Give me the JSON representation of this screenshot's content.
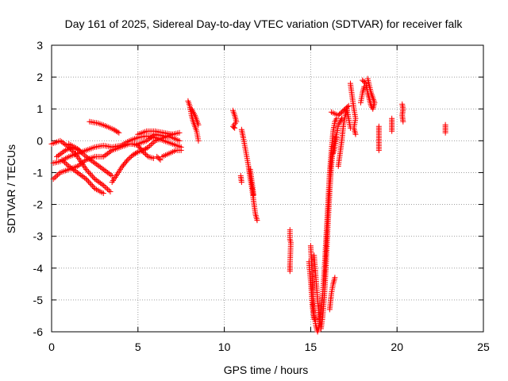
{
  "chart_data": {
    "type": "scatter",
    "title": "Day 161 of 2025, Sidereal Day-to-day VTEC variation (SDTVAR) for receiver falk",
    "xlabel": "GPS time / hours",
    "ylabel": "SDTVAR / TECUs",
    "xlim": [
      0,
      25
    ],
    "ylim": [
      -6,
      3
    ],
    "xticks": [
      0,
      5,
      10,
      15,
      20,
      25
    ],
    "yticks": [
      -6,
      -5,
      -4,
      -3,
      -2,
      -1,
      0,
      1,
      2,
      3
    ],
    "xtick_labels": [
      "0",
      "5",
      "10",
      "15",
      "20",
      "25"
    ],
    "ytick_labels": [
      "-6",
      "-5",
      "-4",
      "-3",
      "-2",
      "-1",
      "0",
      "1",
      "2",
      "3"
    ],
    "grid": true,
    "marker": "+",
    "color": "#ff0000",
    "series": [
      {
        "name": "SDTVAR",
        "segments": [
          [
            [
              0.1,
              -0.7
            ],
            [
              0.5,
              -0.65
            ],
            [
              1.0,
              -0.5
            ],
            [
              1.5,
              -0.4
            ],
            [
              2.0,
              -0.3
            ],
            [
              2.5,
              -0.2
            ],
            [
              3.0,
              -0.15
            ],
            [
              3.5,
              -0.2
            ],
            [
              4.0,
              -0.15
            ],
            [
              4.5,
              0.0
            ],
            [
              5.0,
              0.1
            ],
            [
              5.5,
              0.15
            ],
            [
              6.0,
              0.1
            ],
            [
              6.5,
              0.0
            ],
            [
              7.0,
              -0.1
            ],
            [
              7.5,
              -0.2
            ]
          ],
          [
            [
              0.1,
              -1.2
            ],
            [
              0.5,
              -1.0
            ],
            [
              1.0,
              -0.9
            ],
            [
              1.5,
              -0.8
            ],
            [
              2.0,
              -0.6
            ],
            [
              2.5,
              -0.5
            ],
            [
              3.0,
              -0.5
            ],
            [
              3.5,
              -0.3
            ],
            [
              4.0,
              -0.2
            ],
            [
              4.5,
              -0.1
            ],
            [
              5.0,
              -0.1
            ],
            [
              5.5,
              0.0
            ],
            [
              6.0,
              0.2
            ],
            [
              6.5,
              0.15
            ],
            [
              7.0,
              0.1
            ],
            [
              7.4,
              0.0
            ]
          ],
          [
            [
              0.0,
              -0.1
            ],
            [
              0.5,
              0.0
            ],
            [
              1.0,
              -0.2
            ],
            [
              1.5,
              -0.5
            ],
            [
              2.0,
              -0.9
            ],
            [
              2.5,
              -1.2
            ],
            [
              3.0,
              -1.4
            ],
            [
              3.4,
              -1.6
            ]
          ],
          [
            [
              0.6,
              -0.6
            ],
            [
              1.0,
              -0.8
            ],
            [
              1.5,
              -1.0
            ],
            [
              2.0,
              -1.2
            ],
            [
              2.5,
              -1.5
            ],
            [
              3.0,
              -1.65
            ]
          ],
          [
            [
              1.0,
              -0.1
            ],
            [
              1.5,
              -0.25
            ],
            [
              2.0,
              -0.5
            ],
            [
              2.5,
              -0.7
            ],
            [
              3.0,
              -0.9
            ],
            [
              3.5,
              -1.1
            ]
          ],
          [
            [
              0.3,
              -0.5
            ],
            [
              0.8,
              -0.3
            ],
            [
              1.2,
              -0.2
            ],
            [
              1.6,
              -0.3
            ]
          ],
          [
            [
              2.2,
              0.6
            ],
            [
              2.7,
              0.55
            ],
            [
              3.2,
              0.45
            ],
            [
              3.6,
              0.35
            ],
            [
              3.9,
              0.25
            ]
          ],
          [
            [
              3.5,
              -1.3
            ],
            [
              3.8,
              -1.05
            ],
            [
              4.1,
              -0.8
            ],
            [
              4.4,
              -0.6
            ],
            [
              4.7,
              -0.45
            ],
            [
              5.0,
              -0.35
            ],
            [
              5.3,
              -0.3
            ],
            [
              5.6,
              -0.2
            ],
            [
              6.0,
              0.0
            ],
            [
              6.5,
              0.1
            ],
            [
              7.0,
              0.2
            ],
            [
              7.4,
              0.25
            ]
          ],
          [
            [
              4.7,
              -0.1
            ],
            [
              5.0,
              -0.15
            ],
            [
              5.3,
              -0.35
            ],
            [
              5.6,
              -0.5
            ],
            [
              5.9,
              -0.55
            ]
          ],
          [
            [
              5.0,
              0.2
            ],
            [
              5.5,
              0.3
            ],
            [
              6.0,
              0.3
            ],
            [
              6.5,
              0.25
            ],
            [
              7.0,
              0.2
            ]
          ],
          [
            [
              6.4,
              -0.5
            ],
            [
              6.8,
              -0.4
            ],
            [
              7.2,
              -0.3
            ],
            [
              7.5,
              -0.3
            ]
          ],
          [
            [
              6.1,
              -0.5
            ],
            [
              6.3,
              -0.6
            ]
          ],
          [
            [
              7.9,
              1.25
            ],
            [
              8.0,
              1.1
            ],
            [
              8.1,
              0.8
            ],
            [
              8.2,
              0.6
            ],
            [
              8.4,
              0.3
            ],
            [
              8.5,
              0.0
            ]
          ],
          [
            [
              8.1,
              1.0
            ],
            [
              8.3,
              0.8
            ],
            [
              8.5,
              0.5
            ]
          ],
          [
            [
              10.5,
              0.95
            ],
            [
              10.6,
              0.8
            ],
            [
              10.7,
              0.6
            ],
            [
              10.5,
              0.45
            ],
            [
              10.6,
              0.4
            ]
          ],
          [
            [
              11.0,
              0.35
            ],
            [
              11.1,
              0.1
            ],
            [
              11.2,
              -0.2
            ],
            [
              11.3,
              -0.5
            ],
            [
              11.4,
              -0.8
            ],
            [
              11.5,
              -1.2
            ],
            [
              11.6,
              -1.5
            ],
            [
              11.7,
              -1.9
            ],
            [
              11.8,
              -2.3
            ],
            [
              11.9,
              -2.5
            ]
          ],
          [
            [
              11.5,
              -0.9
            ],
            [
              11.6,
              -1.3
            ],
            [
              11.7,
              -1.7
            ]
          ],
          [
            [
              10.95,
              -1.1
            ],
            [
              11.0,
              -1.3
            ]
          ],
          [
            [
              13.8,
              -2.8
            ],
            [
              13.8,
              -3.1
            ],
            [
              13.85,
              -3.2
            ],
            [
              13.8,
              -3.9
            ],
            [
              13.8,
              -4.1
            ]
          ],
          [
            [
              15.0,
              -3.3
            ],
            [
              15.05,
              -3.8
            ],
            [
              15.1,
              -4.5
            ],
            [
              15.15,
              -5.0
            ],
            [
              15.2,
              -5.5
            ],
            [
              15.3,
              -5.8
            ],
            [
              15.4,
              -6.0
            ],
            [
              15.5,
              -5.8
            ],
            [
              15.6,
              -5.3
            ],
            [
              15.7,
              -4.8
            ],
            [
              15.8,
              -4.0
            ],
            [
              15.9,
              -3.0
            ],
            [
              16.0,
              -2.0
            ],
            [
              16.1,
              -1.0
            ],
            [
              16.2,
              -0.3
            ],
            [
              16.3,
              0.3
            ],
            [
              16.4,
              0.6
            ],
            [
              16.5,
              0.7
            ]
          ],
          [
            [
              15.2,
              -3.6
            ],
            [
              15.3,
              -4.3
            ],
            [
              15.4,
              -5.0
            ],
            [
              15.5,
              -5.5
            ],
            [
              15.6,
              -5.9
            ],
            [
              15.7,
              -5.5
            ],
            [
              15.8,
              -4.8
            ],
            [
              15.9,
              -3.8
            ],
            [
              16.0,
              -2.6
            ],
            [
              16.1,
              -1.6
            ],
            [
              16.2,
              -0.8
            ],
            [
              16.3,
              -0.2
            ],
            [
              16.5,
              0.2
            ],
            [
              16.6,
              0.5
            ],
            [
              16.8,
              0.7
            ]
          ],
          [
            [
              14.9,
              -3.8
            ],
            [
              15.0,
              -4.4
            ],
            [
              15.1,
              -5.2
            ],
            [
              15.2,
              -5.6
            ],
            [
              15.3,
              -5.6
            ]
          ],
          [
            [
              16.1,
              -5.3
            ],
            [
              16.2,
              -4.8
            ],
            [
              16.3,
              -4.5
            ],
            [
              16.4,
              -4.3
            ]
          ],
          [
            [
              16.2,
              0.9
            ],
            [
              16.4,
              0.85
            ],
            [
              16.6,
              0.8
            ],
            [
              16.8,
              0.9
            ],
            [
              17.0,
              1.0
            ],
            [
              17.2,
              1.1
            ]
          ],
          [
            [
              16.6,
              -0.8
            ],
            [
              16.7,
              -0.4
            ],
            [
              16.8,
              0.0
            ],
            [
              16.9,
              0.5
            ],
            [
              17.0,
              0.8
            ],
            [
              17.1,
              1.0
            ],
            [
              17.2,
              0.7
            ],
            [
              17.3,
              0.4
            ]
          ],
          [
            [
              17.3,
              1.8
            ],
            [
              17.4,
              1.4
            ],
            [
              17.5,
              1.0
            ],
            [
              17.6,
              0.7
            ],
            [
              17.5,
              0.4
            ],
            [
              17.6,
              0.2
            ]
          ],
          [
            [
              16.3,
              -0.4
            ],
            [
              16.4,
              -0.2
            ],
            [
              16.5,
              0.1
            ]
          ],
          [
            [
              18.0,
              1.9
            ],
            [
              18.2,
              1.8
            ],
            [
              18.3,
              1.5
            ],
            [
              18.4,
              1.3
            ],
            [
              18.5,
              1.1
            ],
            [
              18.6,
              1.0
            ],
            [
              18.7,
              1.2
            ],
            [
              18.5,
              1.5
            ],
            [
              18.3,
              1.95
            ]
          ],
          [
            [
              17.9,
              1.2
            ],
            [
              18.0,
              1.5
            ],
            [
              18.1,
              1.7
            ]
          ],
          [
            [
              18.95,
              -0.3
            ],
            [
              18.95,
              -0.1
            ],
            [
              18.95,
              0.1
            ],
            [
              18.95,
              0.3
            ],
            [
              18.95,
              0.45
            ]
          ],
          [
            [
              19.7,
              0.7
            ],
            [
              19.7,
              0.5
            ],
            [
              19.7,
              0.3
            ]
          ],
          [
            [
              20.3,
              1.15
            ],
            [
              20.35,
              1.0
            ],
            [
              20.3,
              0.8
            ],
            [
              20.35,
              0.6
            ]
          ],
          [
            [
              22.8,
              0.5
            ],
            [
              22.8,
              0.3
            ],
            [
              22.8,
              0.25
            ]
          ]
        ]
      }
    ]
  }
}
